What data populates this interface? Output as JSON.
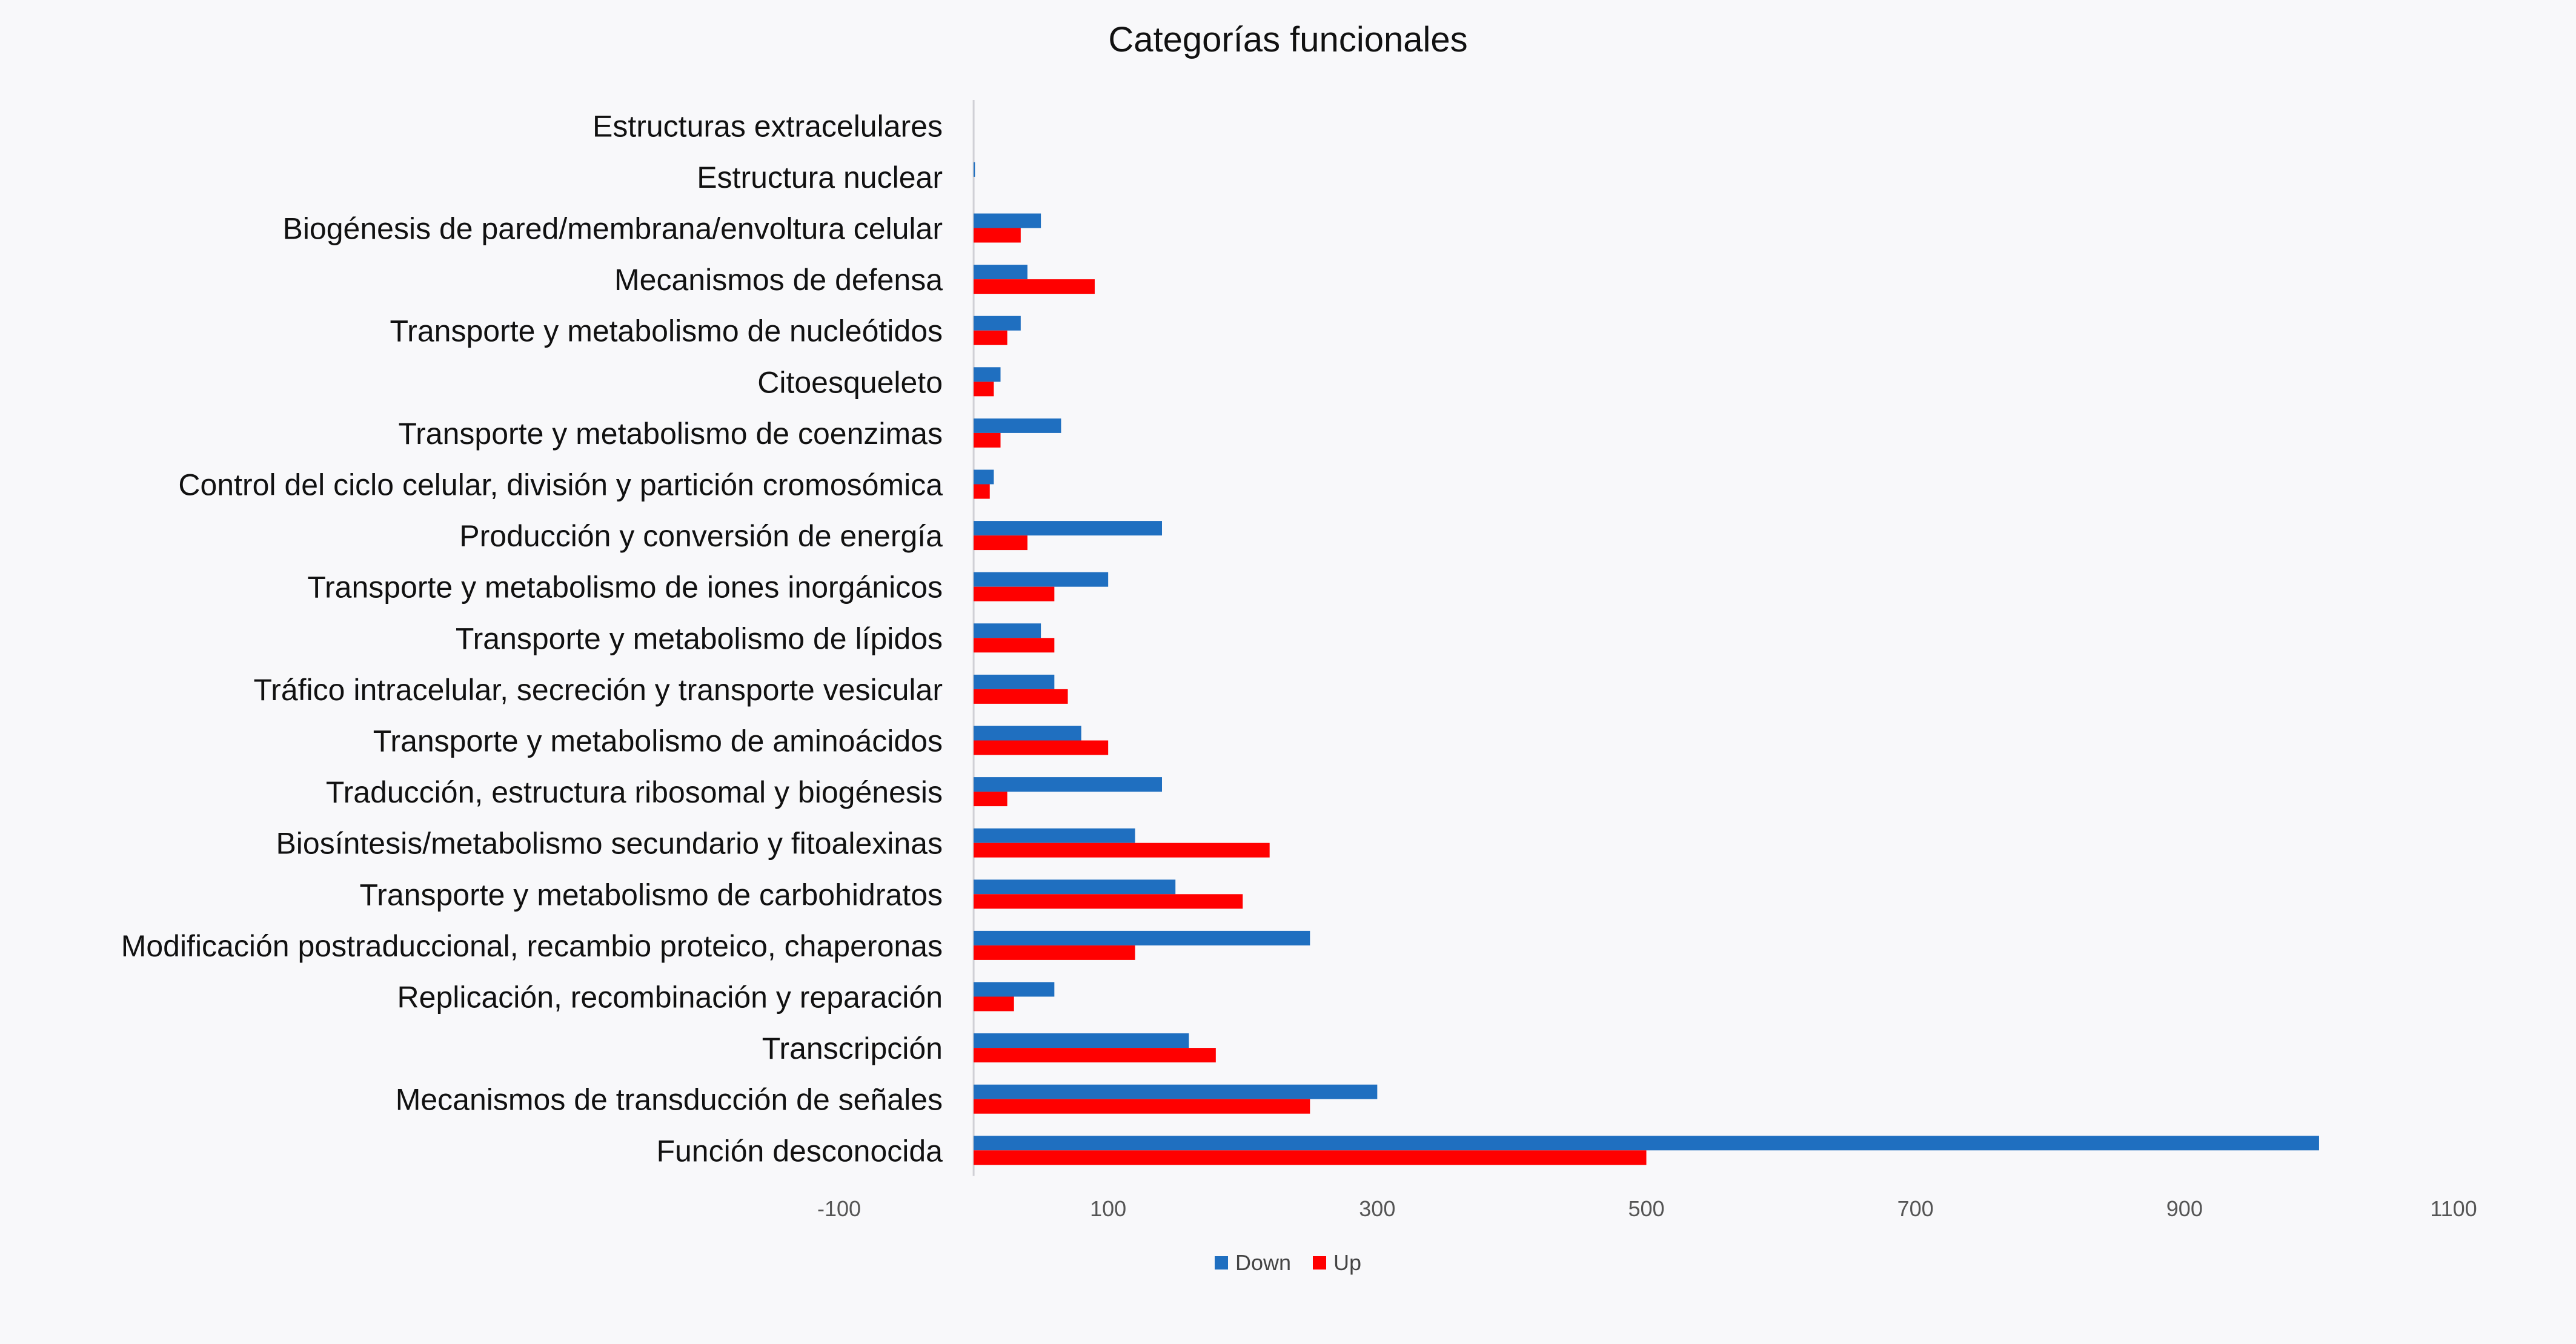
{
  "chart_data": {
    "type": "bar",
    "orientation": "horizontal",
    "title": "Categorías funcionales",
    "xlabel": "",
    "ylabel": "",
    "categories": [
      "Estructuras extracelulares",
      "Estructura nuclear",
      "Biogénesis de pared/membrana/envoltura celular",
      "Mecanismos de defensa",
      "Transporte y metabolismo de nucleótidos",
      "Citoesqueleto",
      "Transporte y metabolismo de coenzimas",
      "Control del ciclo celular, división y partición cromosómica",
      "Producción y conversión de energía",
      "Transporte y metabolismo de iones inorgánicos",
      "Transporte y metabolismo de lípidos",
      "Tráfico intracelular, secreción y transporte vesicular",
      "Transporte y metabolismo de aminoácidos",
      "Traducción, estructura ribosomal y biogénesis",
      "Biosíntesis/metabolismo secundario y fitoalexinas",
      "Transporte y metabolismo de carbohidratos",
      "Modificación postraduccional, recambio proteico, chaperonas",
      "Replicación, recombinación y reparación",
      "Transcripción",
      "Mecanismos de transducción de señales",
      "Función desconocida"
    ],
    "series": [
      {
        "name": "Down",
        "color": "#1f6fc0",
        "values": [
          0,
          1,
          50,
          40,
          35,
          20,
          65,
          15,
          140,
          100,
          50,
          60,
          80,
          140,
          120,
          150,
          250,
          60,
          160,
          300,
          1000
        ]
      },
      {
        "name": "Up",
        "color": "#ff0000",
        "values": [
          0,
          0,
          35,
          90,
          25,
          15,
          20,
          12,
          40,
          60,
          60,
          70,
          100,
          25,
          220,
          200,
          120,
          30,
          180,
          250,
          500
        ]
      }
    ],
    "xlim": [
      -100,
      1100
    ],
    "xticks": [
      -100,
      100,
      300,
      500,
      700,
      900,
      1100
    ],
    "xtick_labels": [
      "-100",
      "100",
      "300",
      "500",
      "700",
      "900",
      "1100"
    ],
    "grid": false,
    "legend": "bottom"
  }
}
